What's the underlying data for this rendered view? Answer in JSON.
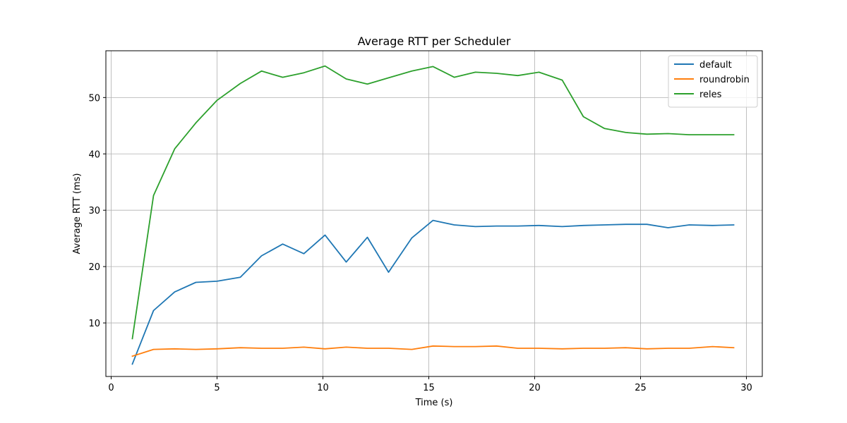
{
  "chart_data": {
    "type": "line",
    "title": "Average RTT per Scheduler",
    "xlabel": "Time (s)",
    "ylabel": "Average RTT (ms)",
    "xlim": [
      -0.25,
      30.75
    ],
    "ylim": [
      0.5,
      58.3
    ],
    "xticks": [
      0,
      5,
      10,
      15,
      20,
      25,
      30
    ],
    "yticks": [
      10,
      20,
      30,
      40,
      50
    ],
    "grid": true,
    "legend_position": "top-right",
    "x": [
      1.0,
      2.0,
      3.0,
      4.0,
      5.0,
      6.1,
      7.1,
      8.1,
      9.1,
      10.1,
      11.1,
      12.1,
      13.1,
      14.2,
      15.2,
      16.2,
      17.2,
      18.2,
      19.2,
      20.2,
      21.3,
      22.3,
      23.3,
      24.3,
      25.3,
      26.3,
      27.3,
      28.4,
      29.4
    ],
    "series": [
      {
        "name": "default",
        "color": "#1f77b4",
        "values": [
          2.7,
          12.2,
          15.5,
          17.2,
          17.4,
          18.1,
          21.9,
          24.0,
          22.3,
          25.6,
          20.8,
          25.2,
          19.0,
          25.1,
          28.2,
          27.4,
          27.1,
          27.2,
          27.2,
          27.3,
          27.1,
          27.3,
          27.4,
          27.5,
          27.5,
          26.9,
          27.4,
          27.3,
          27.4
        ]
      },
      {
        "name": "roundrobin",
        "color": "#ff7f0e",
        "values": [
          4.1,
          5.3,
          5.4,
          5.3,
          5.4,
          5.6,
          5.5,
          5.5,
          5.7,
          5.4,
          5.7,
          5.5,
          5.5,
          5.3,
          5.9,
          5.8,
          5.8,
          5.9,
          5.5,
          5.5,
          5.4,
          5.5,
          5.5,
          5.6,
          5.4,
          5.5,
          5.5,
          5.8,
          5.6
        ]
      },
      {
        "name": "reles",
        "color": "#2ca02c",
        "values": [
          7.2,
          32.6,
          40.9,
          45.5,
          49.5,
          52.5,
          54.7,
          53.6,
          54.4,
          55.6,
          53.3,
          52.4,
          53.5,
          54.7,
          55.5,
          53.6,
          54.5,
          54.3,
          53.9,
          54.5,
          53.1,
          46.6,
          44.5,
          43.8,
          43.5,
          43.6,
          43.4,
          43.4,
          43.4
        ]
      }
    ]
  }
}
